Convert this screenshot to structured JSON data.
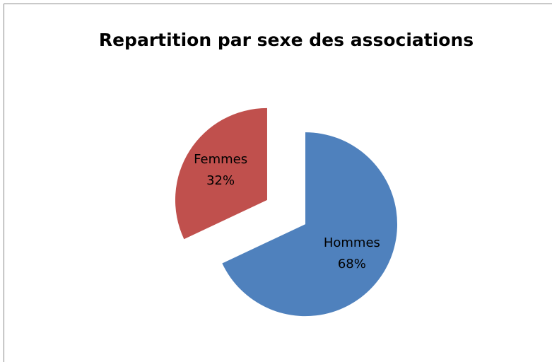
{
  "chart_data": {
    "type": "pie",
    "title": "Repartition par sexe des associations",
    "categories": [
      "Hommes",
      "Femmes"
    ],
    "values": [
      68,
      32
    ],
    "value_labels": [
      "68%",
      "32%"
    ],
    "colors": [
      "#4f81bd",
      "#c0504d"
    ],
    "exploded": true
  }
}
